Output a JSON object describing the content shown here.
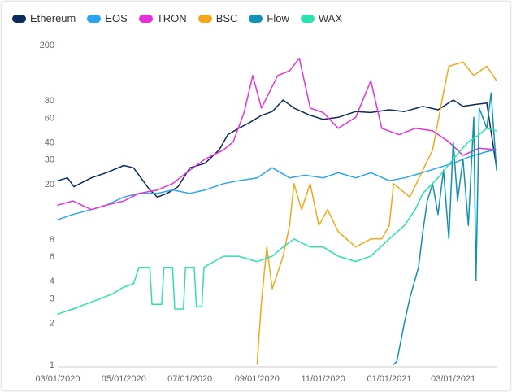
{
  "chart_data": {
    "type": "line",
    "title": "",
    "xlabel": "",
    "ylabel": "",
    "y_scale": "log",
    "ylim": [
      1,
      200
    ],
    "xlim": [
      "2020-03-01",
      "2021-04-10"
    ],
    "grid": false,
    "legend_position": "top-left",
    "y_ticks": [
      1,
      2,
      3,
      4,
      6,
      8,
      20,
      30,
      40,
      60,
      80,
      200
    ],
    "y_tick_labels": [
      "1",
      "2",
      "3",
      "4",
      "6",
      "8",
      "20",
      "30",
      "40",
      "60",
      "80",
      "200"
    ],
    "x_ticks": [
      "2020-03-01",
      "2020-05-01",
      "2020-07-01",
      "2020-09-01",
      "2020-11-01",
      "2021-01-01",
      "2021-03-01"
    ],
    "x_tick_labels": [
      "03/01/2020",
      "05/01/2020",
      "07/01/2020",
      "09/01/2020",
      "11/01/2020",
      "01/01/2021",
      "03/01/2021"
    ],
    "series": [
      {
        "name": "Ethereum",
        "color": "#0d2a5c",
        "points": [
          [
            "2020-03-01",
            21
          ],
          [
            "2020-03-10",
            22
          ],
          [
            "2020-03-16",
            19
          ],
          [
            "2020-04-01",
            22
          ],
          [
            "2020-04-15",
            24
          ],
          [
            "2020-05-01",
            27
          ],
          [
            "2020-05-10",
            26
          ],
          [
            "2020-05-25",
            18
          ],
          [
            "2020-06-01",
            16
          ],
          [
            "2020-06-10",
            17
          ],
          [
            "2020-06-20",
            19
          ],
          [
            "2020-07-01",
            26
          ],
          [
            "2020-07-15",
            28
          ],
          [
            "2020-07-28",
            35
          ],
          [
            "2020-08-05",
            45
          ],
          [
            "2020-08-15",
            50
          ],
          [
            "2020-08-25",
            55
          ],
          [
            "2020-09-05",
            62
          ],
          [
            "2020-09-15",
            66
          ],
          [
            "2020-09-25",
            80
          ],
          [
            "2020-10-05",
            70
          ],
          [
            "2020-10-20",
            62
          ],
          [
            "2020-11-01",
            58
          ],
          [
            "2020-11-15",
            60
          ],
          [
            "2020-12-01",
            66
          ],
          [
            "2020-12-15",
            65
          ],
          [
            "2021-01-01",
            68
          ],
          [
            "2021-01-15",
            66
          ],
          [
            "2021-02-01",
            72
          ],
          [
            "2021-02-15",
            68
          ],
          [
            "2021-03-01",
            80
          ],
          [
            "2021-03-10",
            72
          ],
          [
            "2021-03-20",
            74
          ],
          [
            "2021-04-01",
            76
          ],
          [
            "2021-04-10",
            26
          ]
        ]
      },
      {
        "name": "EOS",
        "color": "#2ba4ec",
        "points": [
          [
            "2020-03-01",
            11
          ],
          [
            "2020-03-15",
            12
          ],
          [
            "2020-04-01",
            13
          ],
          [
            "2020-04-15",
            14
          ],
          [
            "2020-05-01",
            16
          ],
          [
            "2020-05-15",
            17
          ],
          [
            "2020-06-01",
            17
          ],
          [
            "2020-06-15",
            18
          ],
          [
            "2020-07-01",
            17
          ],
          [
            "2020-07-15",
            18
          ],
          [
            "2020-08-01",
            20
          ],
          [
            "2020-08-15",
            21
          ],
          [
            "2020-09-01",
            22
          ],
          [
            "2020-09-15",
            26
          ],
          [
            "2020-10-01",
            22
          ],
          [
            "2020-10-15",
            23
          ],
          [
            "2020-11-01",
            22
          ],
          [
            "2020-11-15",
            24
          ],
          [
            "2020-12-01",
            22
          ],
          [
            "2020-12-15",
            24
          ],
          [
            "2021-01-01",
            21
          ],
          [
            "2021-01-15",
            22
          ],
          [
            "2021-02-01",
            24
          ],
          [
            "2021-02-15",
            26
          ],
          [
            "2021-03-01",
            28
          ],
          [
            "2021-03-15",
            31
          ],
          [
            "2021-04-01",
            34
          ],
          [
            "2021-04-10",
            35
          ]
        ]
      },
      {
        "name": "TRON",
        "color": "#e332d9",
        "points": [
          [
            "2020-03-01",
            14
          ],
          [
            "2020-03-15",
            15
          ],
          [
            "2020-04-01",
            13
          ],
          [
            "2020-04-15",
            14
          ],
          [
            "2020-05-01",
            15
          ],
          [
            "2020-05-15",
            17
          ],
          [
            "2020-06-01",
            18
          ],
          [
            "2020-06-15",
            20
          ],
          [
            "2020-07-01",
            25
          ],
          [
            "2020-07-15",
            30
          ],
          [
            "2020-08-01",
            35
          ],
          [
            "2020-08-10",
            40
          ],
          [
            "2020-08-20",
            65
          ],
          [
            "2020-08-28",
            120
          ],
          [
            "2020-09-05",
            70
          ],
          [
            "2020-09-20",
            120
          ],
          [
            "2020-10-01",
            130
          ],
          [
            "2020-10-10",
            160
          ],
          [
            "2020-10-20",
            70
          ],
          [
            "2020-11-01",
            65
          ],
          [
            "2020-11-15",
            50
          ],
          [
            "2020-12-01",
            60
          ],
          [
            "2020-12-15",
            110
          ],
          [
            "2020-12-25",
            50
          ],
          [
            "2021-01-10",
            45
          ],
          [
            "2021-01-25",
            50
          ],
          [
            "2021-02-10",
            48
          ],
          [
            "2021-02-25",
            40
          ],
          [
            "2021-03-10",
            32
          ],
          [
            "2021-03-25",
            36
          ],
          [
            "2021-04-10",
            35
          ]
        ]
      },
      {
        "name": "BSC",
        "color": "#f0a81c",
        "points": [
          [
            "2020-09-01",
            1
          ],
          [
            "2020-09-05",
            2.8
          ],
          [
            "2020-09-10",
            7
          ],
          [
            "2020-09-15",
            3.5
          ],
          [
            "2020-09-25",
            6
          ],
          [
            "2020-10-01",
            10
          ],
          [
            "2020-10-05",
            20
          ],
          [
            "2020-10-12",
            13
          ],
          [
            "2020-10-20",
            20
          ],
          [
            "2020-10-28",
            10
          ],
          [
            "2020-11-05",
            13
          ],
          [
            "2020-11-15",
            9
          ],
          [
            "2020-12-01",
            7
          ],
          [
            "2020-12-15",
            8
          ],
          [
            "2020-12-25",
            8
          ],
          [
            "2021-01-01",
            10
          ],
          [
            "2021-01-05",
            20
          ],
          [
            "2021-01-20",
            16
          ],
          [
            "2021-02-01",
            25
          ],
          [
            "2021-02-10",
            35
          ],
          [
            "2021-02-20",
            90
          ],
          [
            "2021-02-25",
            140
          ],
          [
            "2021-03-10",
            150
          ],
          [
            "2021-03-20",
            120
          ],
          [
            "2021-04-01",
            140
          ],
          [
            "2021-04-10",
            110
          ]
        ]
      },
      {
        "name": "Flow",
        "color": "#1191b3",
        "points": [
          [
            "2021-01-05",
            1
          ],
          [
            "2021-01-08",
            1.05
          ],
          [
            "2021-01-15",
            2
          ],
          [
            "2021-01-20",
            3
          ],
          [
            "2021-01-28",
            5
          ],
          [
            "2021-02-01",
            9
          ],
          [
            "2021-02-05",
            15
          ],
          [
            "2021-02-10",
            20
          ],
          [
            "2021-02-15",
            12
          ],
          [
            "2021-02-20",
            25
          ],
          [
            "2021-02-25",
            8
          ],
          [
            "2021-03-01",
            40
          ],
          [
            "2021-03-05",
            15
          ],
          [
            "2021-03-10",
            30
          ],
          [
            "2021-03-15",
            10
          ],
          [
            "2021-03-20",
            60
          ],
          [
            "2021-03-22",
            4
          ],
          [
            "2021-03-25",
            70
          ],
          [
            "2021-04-01",
            50
          ],
          [
            "2021-04-05",
            90
          ],
          [
            "2021-04-10",
            25
          ]
        ]
      },
      {
        "name": "WAX",
        "color": "#2de0b0",
        "points": [
          [
            "2020-03-01",
            2.3
          ],
          [
            "2020-03-15",
            2.5
          ],
          [
            "2020-04-01",
            2.8
          ],
          [
            "2020-04-20",
            3.2
          ],
          [
            "2020-05-01",
            3.6
          ],
          [
            "2020-05-10",
            3.8
          ],
          [
            "2020-05-15",
            5
          ],
          [
            "2020-05-25",
            5
          ],
          [
            "2020-05-27",
            2.7
          ],
          [
            "2020-06-05",
            2.7
          ],
          [
            "2020-06-07",
            5
          ],
          [
            "2020-06-15",
            5
          ],
          [
            "2020-06-17",
            2.5
          ],
          [
            "2020-06-25",
            2.5
          ],
          [
            "2020-06-27",
            5
          ],
          [
            "2020-07-05",
            5
          ],
          [
            "2020-07-07",
            2.6
          ],
          [
            "2020-07-12",
            2.6
          ],
          [
            "2020-07-14",
            5
          ],
          [
            "2020-08-01",
            6
          ],
          [
            "2020-08-15",
            6
          ],
          [
            "2020-09-01",
            5.5
          ],
          [
            "2020-09-15",
            6
          ],
          [
            "2020-09-25",
            7
          ],
          [
            "2020-10-05",
            8
          ],
          [
            "2020-10-20",
            7
          ],
          [
            "2020-11-01",
            7
          ],
          [
            "2020-11-15",
            6
          ],
          [
            "2020-12-01",
            5.5
          ],
          [
            "2020-12-15",
            6
          ],
          [
            "2021-01-01",
            8
          ],
          [
            "2021-01-15",
            10
          ],
          [
            "2021-01-25",
            13
          ],
          [
            "2021-02-01",
            17
          ],
          [
            "2021-02-15",
            22
          ],
          [
            "2021-03-01",
            30
          ],
          [
            "2021-03-15",
            40
          ],
          [
            "2021-03-25",
            45
          ],
          [
            "2021-04-01",
            50
          ],
          [
            "2021-04-10",
            48
          ]
        ]
      }
    ]
  }
}
